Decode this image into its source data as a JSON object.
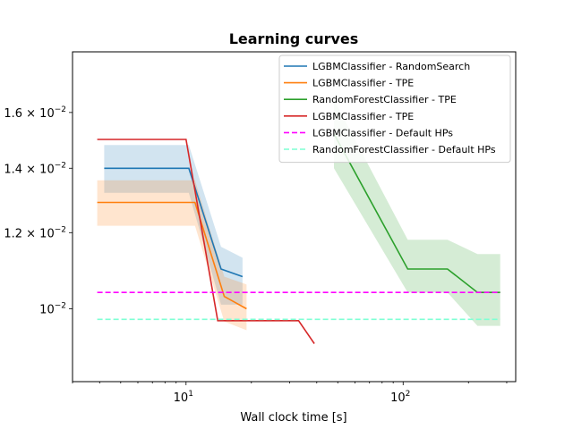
{
  "chart_data": {
    "type": "line",
    "title": "Learning curves",
    "xlabel": "Wall clock time [s]",
    "ylabel": "",
    "xscale": "log",
    "yscale": "log",
    "xlim": [
      3.0,
      330
    ],
    "ylim": [
      0.0084,
      0.0185
    ],
    "x_ticks": [
      {
        "value": 10,
        "base": "10",
        "exp": "1"
      },
      {
        "value": 100,
        "base": "10",
        "exp": "2"
      }
    ],
    "y_ticks": [
      {
        "value": 0.01,
        "mant": "",
        "exp": "−2"
      },
      {
        "value": 0.012,
        "mant": "1.2",
        "exp": "−2"
      },
      {
        "value": 0.014,
        "mant": "1.4",
        "exp": "−2"
      },
      {
        "value": 0.016,
        "mant": "1.6",
        "exp": "−2"
      }
    ],
    "legend_position": "top-right",
    "series": [
      {
        "name": "LGBMClassifier - RandomSearch",
        "color": "#1f77b4",
        "style": "solid",
        "x": [
          4.2,
          10.3,
          14.5,
          18.2
        ],
        "y": [
          0.014,
          0.014,
          0.011,
          0.0108
        ],
        "band_low": [
          0.0132,
          0.0132,
          0.0101,
          0.0101
        ],
        "band_high": [
          0.0148,
          0.0148,
          0.0116,
          0.0113
        ]
      },
      {
        "name": "LGBMClassifier - TPE",
        "color": "#ff7f0e",
        "style": "solid",
        "x": [
          3.9,
          11.0,
          15.0,
          19.0
        ],
        "y": [
          0.0129,
          0.0129,
          0.0103,
          0.01
        ],
        "band_low": [
          0.0122,
          0.0122,
          0.0097,
          0.0095
        ],
        "band_high": [
          0.0136,
          0.0136,
          0.0108,
          0.0106
        ]
      },
      {
        "name": "RandomForestClassifier - TPE",
        "color": "#2ca02c",
        "style": "solid",
        "x": [
          48.0,
          105.0,
          160.0,
          220.0,
          280.0
        ],
        "y": [
          0.0152,
          0.011,
          0.011,
          0.0104,
          0.0104
        ],
        "band_low": [
          0.014,
          0.0104,
          0.0104,
          0.0096,
          0.0096
        ],
        "band_high": [
          0.0165,
          0.0118,
          0.0118,
          0.0114,
          0.0114
        ]
      },
      {
        "name": "LGBMClassifier - TPE",
        "color": "#d62728",
        "style": "solid",
        "x": [
          3.9,
          10.0,
          14.0,
          33.0,
          39.0
        ],
        "y": [
          0.015,
          0.015,
          0.00972,
          0.00972,
          0.0092
        ],
        "band_low": null,
        "band_high": null
      },
      {
        "name": "LGBMClassifier - Default HPs",
        "color": "#ff00ff",
        "style": "dashed",
        "x": [
          3.9,
          280.0
        ],
        "y": [
          0.0104,
          0.0104
        ],
        "band_low": null,
        "band_high": null
      },
      {
        "name": "RandomForestClassifier - Default HPs",
        "color": "#7fffd4",
        "style": "dashed",
        "x": [
          3.9,
          280.0
        ],
        "y": [
          0.00975,
          0.00975
        ],
        "band_low": null,
        "band_high": null
      }
    ]
  }
}
